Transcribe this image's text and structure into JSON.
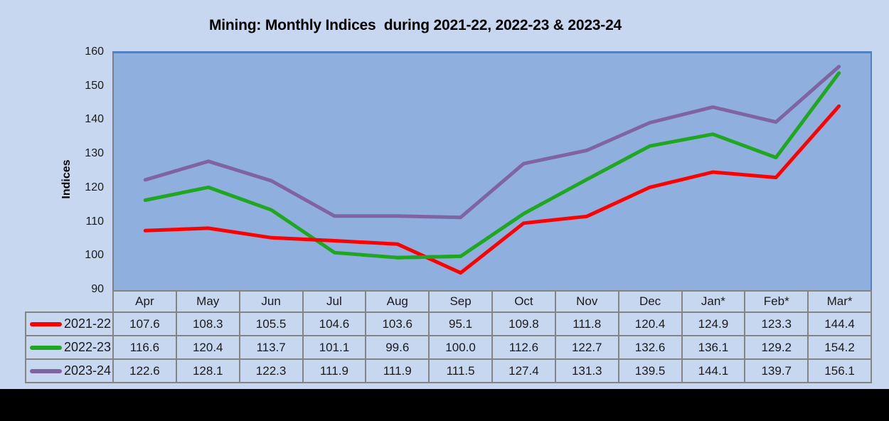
{
  "title": "Mining: Monthly Indices  during 2021-22, 2022-23 & 2023-24",
  "chart_data": {
    "type": "line",
    "title": "Mining: Monthly Indices  during 2021-22, 2022-23 & 2023-24",
    "xlabel": "",
    "ylabel": "Indices",
    "ylim": [
      90,
      160
    ],
    "yticks": [
      160,
      150,
      140,
      130,
      120,
      110,
      100,
      90
    ],
    "grid": false,
    "legend_position": "table-left",
    "categories": [
      "Apr",
      "May",
      "Jun",
      "Jul",
      "Aug",
      "Sep",
      "Oct",
      "Nov",
      "Dec",
      "Jan*",
      "Feb*",
      "Mar*"
    ],
    "series": [
      {
        "name": "2021-22",
        "color": "#FF0000",
        "values": [
          107.6,
          108.3,
          105.5,
          104.6,
          103.6,
          95.1,
          109.8,
          111.8,
          120.4,
          124.9,
          123.3,
          144.4
        ]
      },
      {
        "name": "2022-23",
        "color": "#1FA81F",
        "values": [
          116.6,
          120.4,
          113.7,
          101.1,
          99.6,
          100.0,
          112.6,
          122.7,
          132.6,
          136.1,
          129.2,
          154.2
        ]
      },
      {
        "name": "2023-24",
        "color": "#8064A2",
        "values": [
          122.6,
          128.1,
          122.3,
          111.9,
          111.9,
          111.5,
          127.4,
          131.3,
          139.5,
          144.1,
          139.7,
          156.1
        ]
      }
    ]
  },
  "colors": {
    "page_bg": "#C8D7F0",
    "plot_bg": "#8FB0DE",
    "plot_border": "#4F81BD",
    "axis_gray": "#7F7F7F",
    "table_border": "#848484",
    "text": "#1A1A1A",
    "bottom_bar": "#000000"
  }
}
